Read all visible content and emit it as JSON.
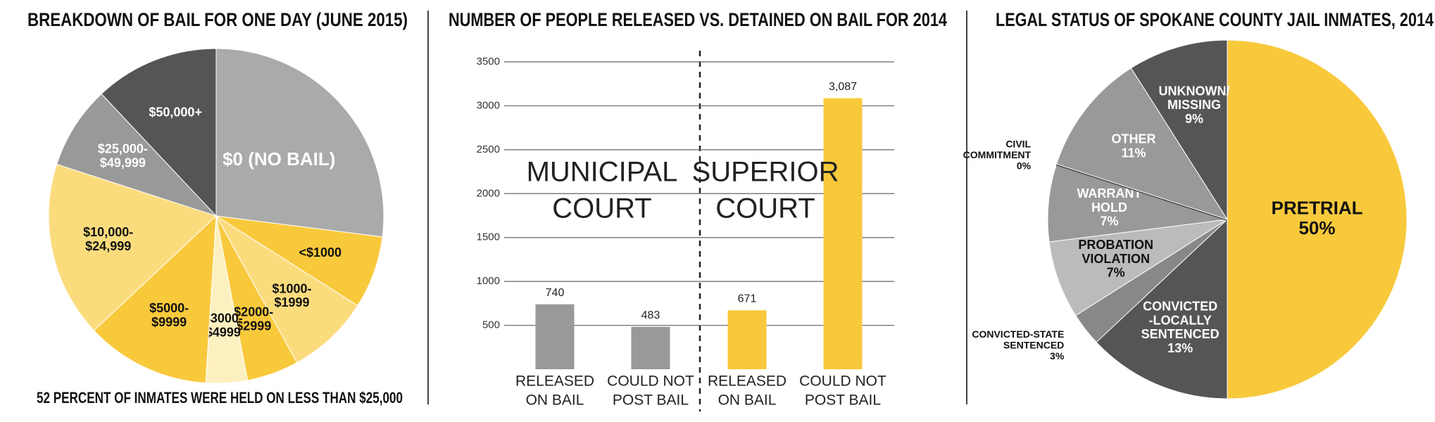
{
  "chart_data": [
    {
      "type": "pie",
      "title": "BREAKDOWN OF BAIL FOR ONE DAY (JUNE 2015)",
      "categories": [
        [
          "$0 (NO BAIL)"
        ],
        [
          "<$1000"
        ],
        [
          "$1000-",
          "$1999"
        ],
        [
          "$2000-",
          "$2999"
        ],
        [
          "$3000-",
          "$4999"
        ],
        [
          "$5000-",
          "$9999"
        ],
        [
          "$10,000-",
          "$24,999"
        ],
        [
          "$25,000-",
          "$49,999"
        ],
        [
          "$50,000+"
        ]
      ],
      "values": [
        27,
        7,
        8,
        5,
        4,
        12,
        17,
        8,
        12
      ],
      "colors": [
        "#aaaaaa",
        "#f9c93c",
        "#fbdc7d",
        "#f9c93c",
        "#fdf0c0",
        "#f9c93c",
        "#fbdc7d",
        "#999999",
        "#555555"
      ],
      "footnote": "52 PERCENT OF INMATES WERE HELD ON LESS THAN $25,000"
    },
    {
      "type": "bar",
      "title": "NUMBER OF PEOPLE RELEASED VS. DETAINED ON BAIL FOR 2014",
      "categories": [
        [
          "RELEASED",
          "ON BAIL"
        ],
        [
          "COULD NOT",
          "POST BAIL"
        ],
        [
          "RELEASED",
          "ON BAIL"
        ],
        [
          "COULD NOT",
          "POST BAIL"
        ]
      ],
      "values": [
        740,
        483,
        671,
        3087
      ],
      "value_labels": [
        "740",
        "483",
        "671",
        "3,087"
      ],
      "colors": [
        "#999999",
        "#999999",
        "#f9c93c",
        "#f9c93c"
      ],
      "groups": [
        [
          "MUNICIPAL",
          "COURT"
        ],
        [
          "SUPERIOR",
          "COURT"
        ]
      ],
      "ylim": [
        0,
        3500
      ],
      "yticks": [
        500,
        1000,
        1500,
        2000,
        2500,
        3000,
        3500
      ],
      "grid": true
    },
    {
      "type": "pie",
      "title": "LEGAL STATUS OF SPOKANE COUNTY JAIL INMATES, 2014",
      "categories": [
        [
          "PRETRIAL"
        ],
        [
          "CONVICTED",
          "-LOCALLY",
          "SENTENCED"
        ],
        [
          "CONVICTED-STATE",
          "SENTENCED"
        ],
        [
          "PROBATION",
          "VIOLATION"
        ],
        [
          "WARRANT",
          "HOLD"
        ],
        [
          "CIVIL",
          "COMMITMENT"
        ],
        [
          "OTHER"
        ],
        [
          "UNKNOWN/",
          "MISSING"
        ]
      ],
      "values": [
        50,
        13,
        3,
        7,
        7,
        0,
        11,
        9
      ],
      "value_labels": [
        "50%",
        "13%",
        "3%",
        "7%",
        "7%",
        "0%",
        "11%",
        "9%"
      ],
      "colors": [
        "#f9c93c",
        "#555555",
        "#888888",
        "#bbbbbb",
        "#999999",
        "#444444",
        "#999999",
        "#555555"
      ]
    }
  ]
}
